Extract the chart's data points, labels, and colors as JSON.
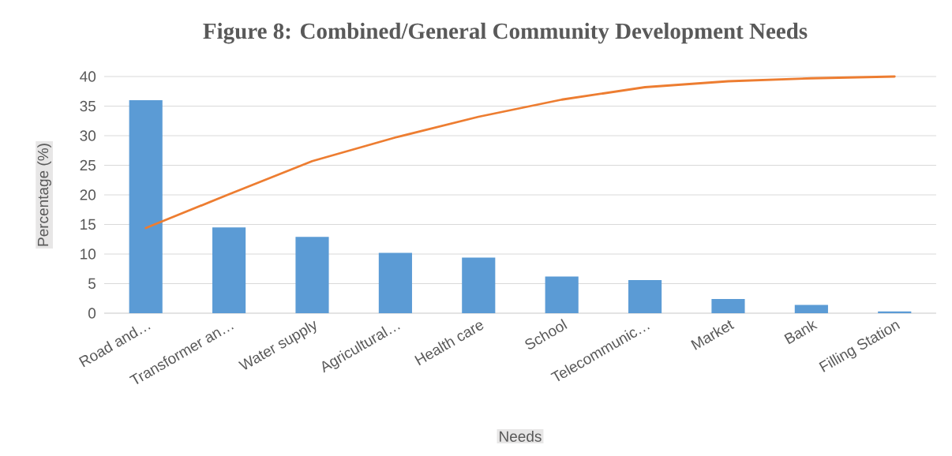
{
  "chart_data": {
    "type": "bar",
    "title": "Figure 8: Combined/General Community Development Needs",
    "xlabel": "Needs",
    "ylabel": "Percentage (%)",
    "categories": [
      "Road and…",
      "Transformer an…",
      "Water supply",
      "Agricultural…",
      "Health care",
      "School",
      "Telecommunic…",
      "Market",
      "Bank",
      "Filling Station"
    ],
    "series": [
      {
        "color": "#5b9bd5",
        "values": [
          36,
          14.5,
          12.9,
          10.2,
          9.4,
          6.2,
          5.6,
          2.4,
          1.4,
          0.3
        ]
      },
      {
        "type": "line",
        "color": "#ed7d31",
        "values": [
          14.4,
          20.1,
          25.7,
          29.7,
          33.2,
          36.1,
          38.2,
          39.2,
          39.7,
          40
        ]
      }
    ],
    "ylim": [
      0,
      40
    ],
    "yticks": [
      0,
      5,
      10,
      15,
      20,
      25,
      30,
      35,
      40
    ],
    "grid": "y",
    "marker": "none"
  }
}
